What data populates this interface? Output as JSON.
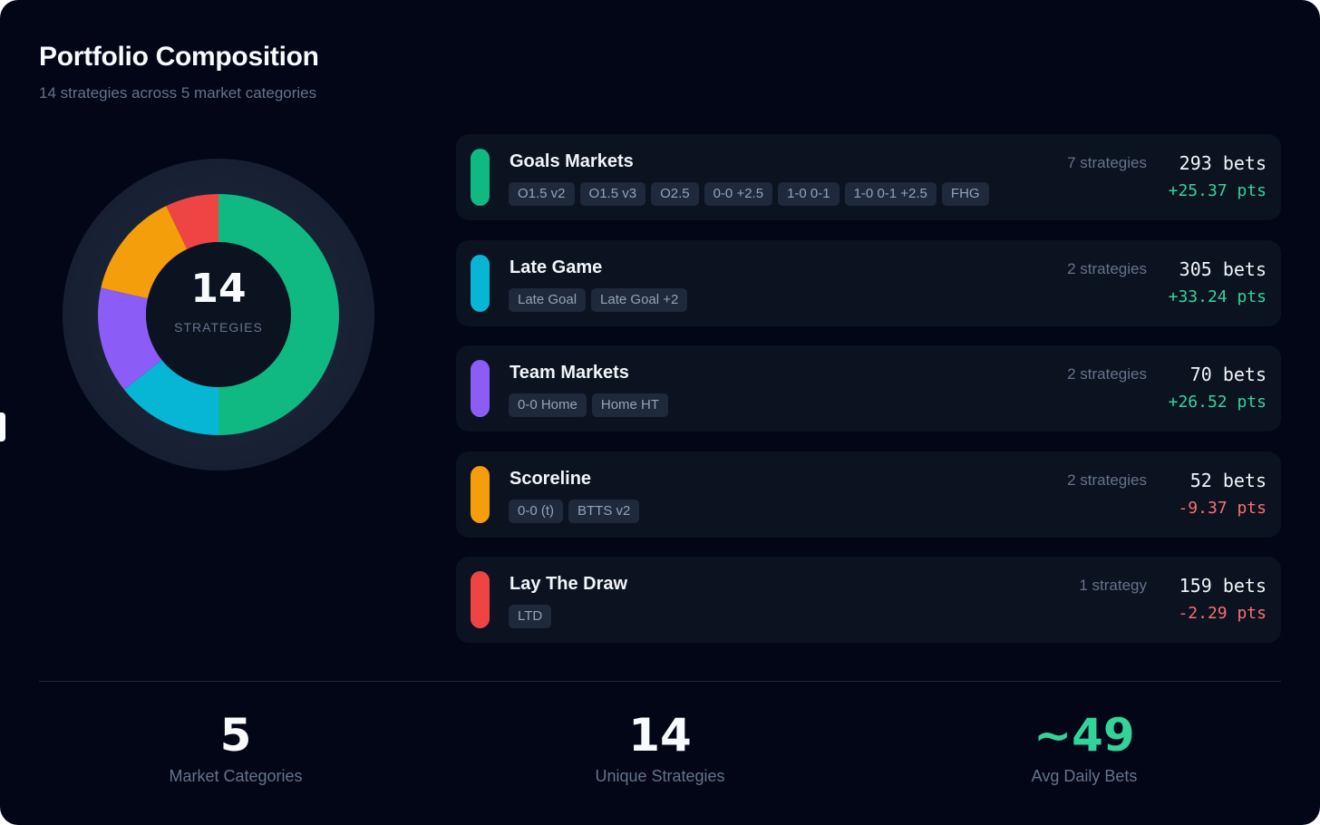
{
  "header": {
    "title": "Portfolio Composition",
    "subtitle": "14 strategies across 5 market categories"
  },
  "donut": {
    "center_value": "14",
    "center_label": "STRATEGIES",
    "segments": [
      {
        "name": "Goals Markets",
        "value": 7,
        "color": "#10b981"
      },
      {
        "name": "Late Game",
        "value": 2,
        "color": "#06b6d4"
      },
      {
        "name": "Team Markets",
        "value": 2,
        "color": "#8b5cf6"
      },
      {
        "name": "Scoreline",
        "value": 2,
        "color": "#f59e0b"
      },
      {
        "name": "Lay The Draw",
        "value": 1,
        "color": "#ef4444"
      }
    ]
  },
  "categories": [
    {
      "name": "Goals Markets",
      "color": "#10b981",
      "count": "7 strategies",
      "bets": "293 bets",
      "pts": "+25.37 pts",
      "pts_sign": "pos",
      "tags": [
        "O1.5 v2",
        "O1.5 v3",
        "O2.5",
        "0-0 +2.5",
        "1-0 0-1",
        "1-0 0-1 +2.5",
        "FHG"
      ]
    },
    {
      "name": "Late Game",
      "color": "#06b6d4",
      "count": "2 strategies",
      "bets": "305 bets",
      "pts": "+33.24 pts",
      "pts_sign": "pos",
      "tags": [
        "Late Goal",
        "Late Goal +2"
      ]
    },
    {
      "name": "Team Markets",
      "color": "#8b5cf6",
      "count": "2 strategies",
      "bets": "70 bets",
      "pts": "+26.52 pts",
      "pts_sign": "pos",
      "tags": [
        "0-0 Home",
        "Home HT"
      ]
    },
    {
      "name": "Scoreline",
      "color": "#f59e0b",
      "count": "2 strategies",
      "bets": "52 bets",
      "pts": "-9.37 pts",
      "pts_sign": "neg",
      "tags": [
        "0-0 (t)",
        "BTTS v2"
      ]
    },
    {
      "name": "Lay The Draw",
      "color": "#ef4444",
      "count": "1 strategy",
      "bets": "159 bets",
      "pts": "-2.29 pts",
      "pts_sign": "neg",
      "tags": [
        "LTD"
      ]
    }
  ],
  "stats": [
    {
      "value": "5",
      "label": "Market Categories",
      "color": "#f8fafc"
    },
    {
      "value": "14",
      "label": "Unique Strategies",
      "color": "#f8fafc"
    },
    {
      "value": "~49",
      "label": "Avg Daily Bets",
      "color": "#34d399"
    }
  ]
}
